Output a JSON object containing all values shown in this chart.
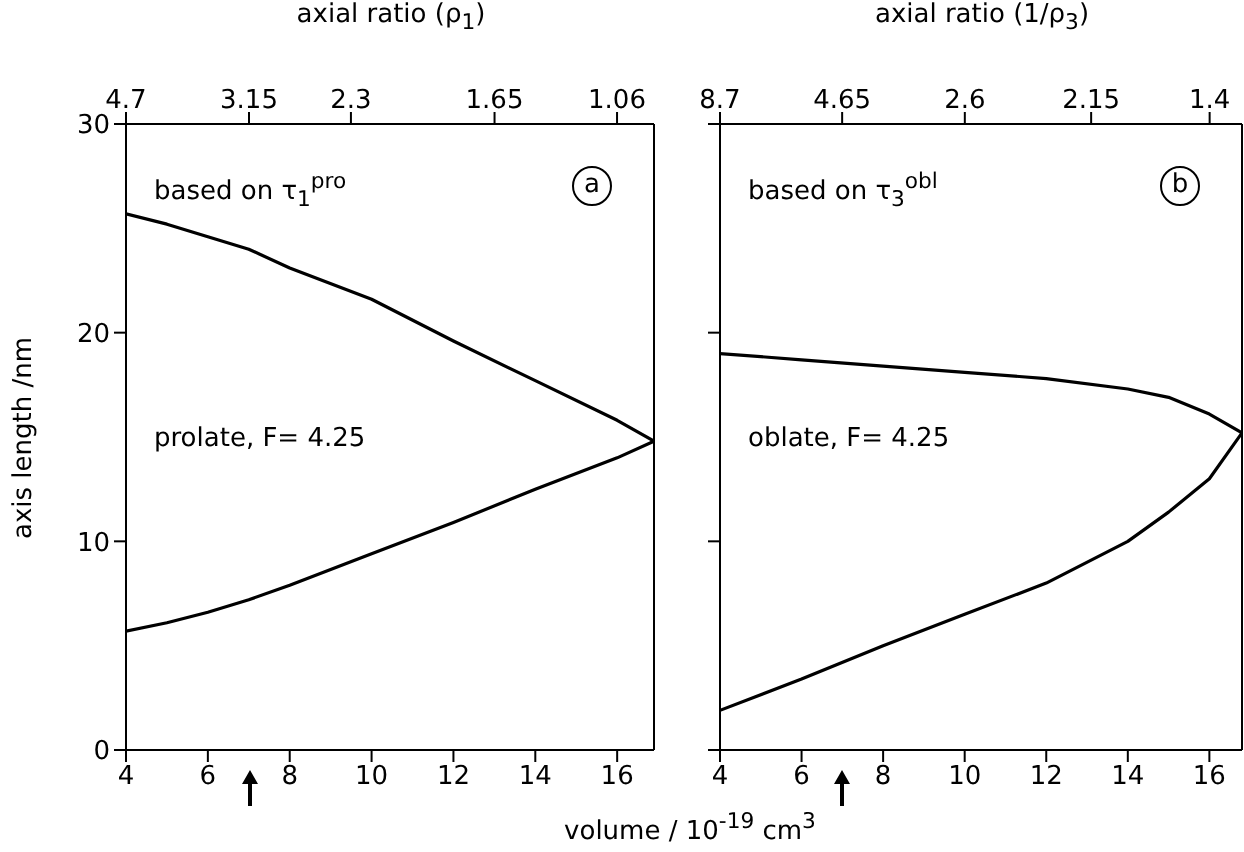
{
  "chart_data": [
    {
      "type": "line",
      "ylabel": "axis length /nm",
      "x2label": "axial ratio (ρ$_{1}$)",
      "annotations": [
        "based on τ$_{1}$$^{pro}$",
        "a",
        "prolate, F= 4.25",
        "4.7",
        "3.15",
        "2.3",
        "1.65",
        "1.06"
      ],
      "x": [
        4,
        5,
        6,
        7,
        8,
        10,
        12,
        14,
        16,
        16.9
      ],
      "series": [
        {
          "color": "#000000",
          "values": [
            25.7,
            25.2,
            24.6,
            24.0,
            23.1,
            21.6,
            19.6,
            17.7,
            15.8,
            14.8
          ]
        },
        {
          "color": "#000000",
          "values": [
            5.7,
            6.1,
            6.6,
            7.2,
            7.9,
            9.4,
            10.9,
            12.5,
            14.0,
            14.8
          ]
        }
      ],
      "xlim": [
        4,
        16.9
      ],
      "xticks": [
        4,
        6,
        8,
        10,
        12,
        14,
        16
      ],
      "ylim": [
        0,
        30
      ],
      "yticks": [
        0,
        10,
        20,
        30
      ],
      "grid": false,
      "legend": false,
      "marker": "none",
      "line_style": "solid"
    },
    {
      "type": "line",
      "xlabel": "volume / 10$^{-19}$ cm$^{3}$",
      "x2label": "axial ratio (1/ρ$_{3}$)",
      "annotations": [
        "based on τ$_{3}$$^{obl}$",
        "b",
        "oblate, F= 4.25",
        "8.7",
        "4.65",
        "2.6",
        "2.15",
        "1.4"
      ],
      "x": [
        4,
        6,
        8,
        10,
        12,
        14,
        15,
        16,
        16.8
      ],
      "series": [
        {
          "color": "#000000",
          "values": [
            19.0,
            18.7,
            18.4,
            18.1,
            17.8,
            17.3,
            16.9,
            16.1,
            15.2
          ]
        },
        {
          "color": "#000000",
          "values": [
            1.9,
            3.4,
            5.0,
            6.5,
            8.0,
            10.0,
            11.4,
            13.0,
            15.2
          ]
        }
      ],
      "xlim": [
        4,
        16.8
      ],
      "xticks": [
        4,
        6,
        8,
        10,
        12,
        14,
        16
      ],
      "ylim": [
        0,
        30
      ],
      "yticks": [
        0,
        10,
        20,
        30
      ],
      "tick_labels": "x",
      "grid": false,
      "legend": false,
      "marker": "none",
      "line_style": "solid"
    }
  ]
}
